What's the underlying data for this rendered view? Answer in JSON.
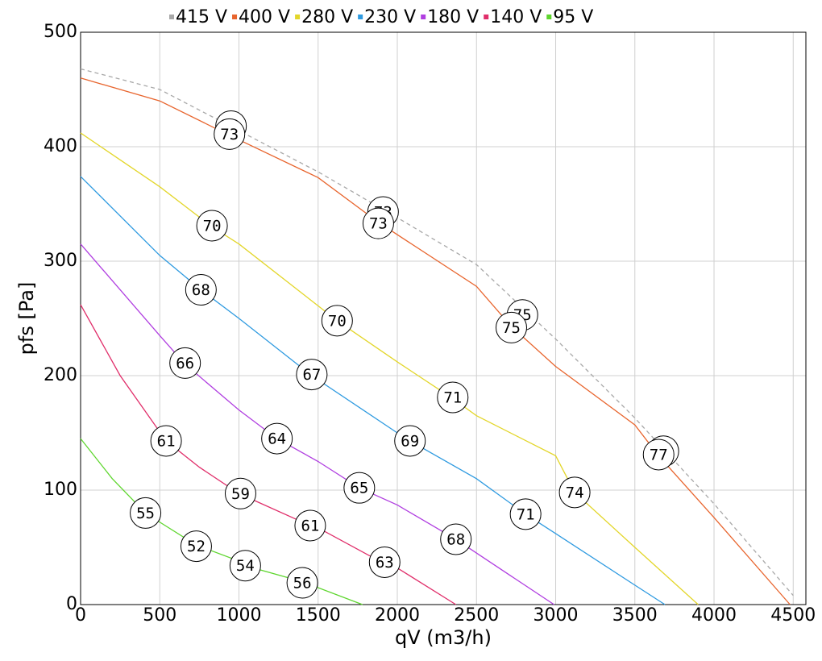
{
  "chart_data": {
    "type": "line",
    "x_label": "qV (m3/h)",
    "y_label": "pfs [Pa]",
    "xlim": [
      0,
      4580
    ],
    "ylim": [
      0,
      500
    ],
    "xticks": [
      0,
      500,
      1000,
      1500,
      2000,
      2500,
      3000,
      3500,
      4000,
      4500
    ],
    "yticks": [
      0,
      100,
      200,
      300,
      400,
      500
    ],
    "grid": true,
    "legend": "top",
    "series": [
      {
        "name": "415 V",
        "color": "#a8a8a8",
        "dashed": true,
        "x": [
          0,
          500,
          1000,
          1500,
          2000,
          2500,
          3000,
          3500,
          4000,
          4500
        ],
        "values": [
          468,
          450,
          414,
          378,
          338,
          297,
          232,
          163,
          88,
          8
        ],
        "annotations": [
          {
            "x": 950,
            "y": 418,
            "text": 73
          },
          {
            "x": 1910,
            "y": 343,
            "text": 73
          },
          {
            "x": 2790,
            "y": 253,
            "text": 75
          },
          {
            "x": 3680,
            "y": 134,
            "text": 77
          }
        ]
      },
      {
        "name": "400 V",
        "color": "#e8652e",
        "dashed": false,
        "x": [
          0,
          500,
          940,
          1500,
          1880,
          2500,
          2720,
          3000,
          3500,
          3650,
          4000,
          4480
        ],
        "values": [
          460,
          440,
          410,
          373,
          334,
          278,
          243,
          208,
          157,
          130,
          76,
          0
        ],
        "annotations": [
          {
            "x": 940,
            "y": 411,
            "text": 73
          },
          {
            "x": 1880,
            "y": 333,
            "text": 73
          },
          {
            "x": 2720,
            "y": 242,
            "text": 75
          },
          {
            "x": 3650,
            "y": 131,
            "text": 77
          }
        ]
      },
      {
        "name": "280 V",
        "color": "#e3d62a",
        "dashed": false,
        "x": [
          0,
          500,
          830,
          1000,
          1620,
          2000,
          2350,
          2500,
          3000,
          3120,
          3500,
          3900
        ],
        "values": [
          412,
          365,
          330,
          315,
          248,
          212,
          180,
          165,
          130,
          98,
          50,
          0
        ],
        "annotations": [
          {
            "x": 830,
            "y": 331,
            "text": 70
          },
          {
            "x": 1620,
            "y": 248,
            "text": 70
          },
          {
            "x": 2350,
            "y": 181,
            "text": 71
          },
          {
            "x": 3120,
            "y": 98,
            "text": 74
          }
        ]
      },
      {
        "name": "230 V",
        "color": "#2e9ae0",
        "dashed": false,
        "x": [
          0,
          500,
          760,
          1000,
          1460,
          2000,
          2080,
          2500,
          2810,
          3000,
          3500,
          3690
        ],
        "values": [
          374,
          305,
          275,
          250,
          200,
          150,
          143,
          110,
          79,
          62,
          17,
          0
        ],
        "annotations": [
          {
            "x": 760,
            "y": 275,
            "text": 68
          },
          {
            "x": 1460,
            "y": 201,
            "text": 67
          },
          {
            "x": 2080,
            "y": 143,
            "text": 69
          },
          {
            "x": 2810,
            "y": 79,
            "text": 71
          }
        ]
      },
      {
        "name": "180 V",
        "color": "#b03ee0",
        "dashed": false,
        "x": [
          0,
          500,
          660,
          1000,
          1240,
          1500,
          1760,
          2000,
          2370,
          2500,
          2990
        ],
        "values": [
          315,
          235,
          210,
          170,
          145,
          125,
          102,
          87,
          57,
          45,
          0
        ],
        "annotations": [
          {
            "x": 660,
            "y": 211,
            "text": 66
          },
          {
            "x": 1240,
            "y": 145,
            "text": 64
          },
          {
            "x": 1760,
            "y": 102,
            "text": 65
          },
          {
            "x": 2370,
            "y": 57,
            "text": 68
          }
        ]
      },
      {
        "name": "140 V",
        "color": "#e02e6a",
        "dashed": false,
        "x": [
          0,
          250,
          540,
          750,
          1000,
          1450,
          1500,
          1900,
          2000,
          2370
        ],
        "values": [
          262,
          200,
          143,
          120,
          97,
          69,
          67,
          37,
          32,
          0
        ],
        "annotations": [
          {
            "x": 540,
            "y": 143,
            "text": 61
          },
          {
            "x": 1010,
            "y": 97,
            "text": 59
          },
          {
            "x": 1450,
            "y": 69,
            "text": 61
          },
          {
            "x": 1920,
            "y": 37,
            "text": 63
          }
        ]
      },
      {
        "name": "95 V",
        "color": "#5ed62e",
        "dashed": false,
        "x": [
          0,
          200,
          410,
          500,
          730,
          1000,
          1040,
          1400,
          1780
        ],
        "values": [
          145,
          110,
          80,
          72,
          52,
          38,
          34,
          20,
          0
        ],
        "annotations": [
          {
            "x": 410,
            "y": 80,
            "text": 55
          },
          {
            "x": 730,
            "y": 51,
            "text": 52
          },
          {
            "x": 1040,
            "y": 34,
            "text": 54
          },
          {
            "x": 1400,
            "y": 19,
            "text": 56
          }
        ]
      }
    ]
  }
}
